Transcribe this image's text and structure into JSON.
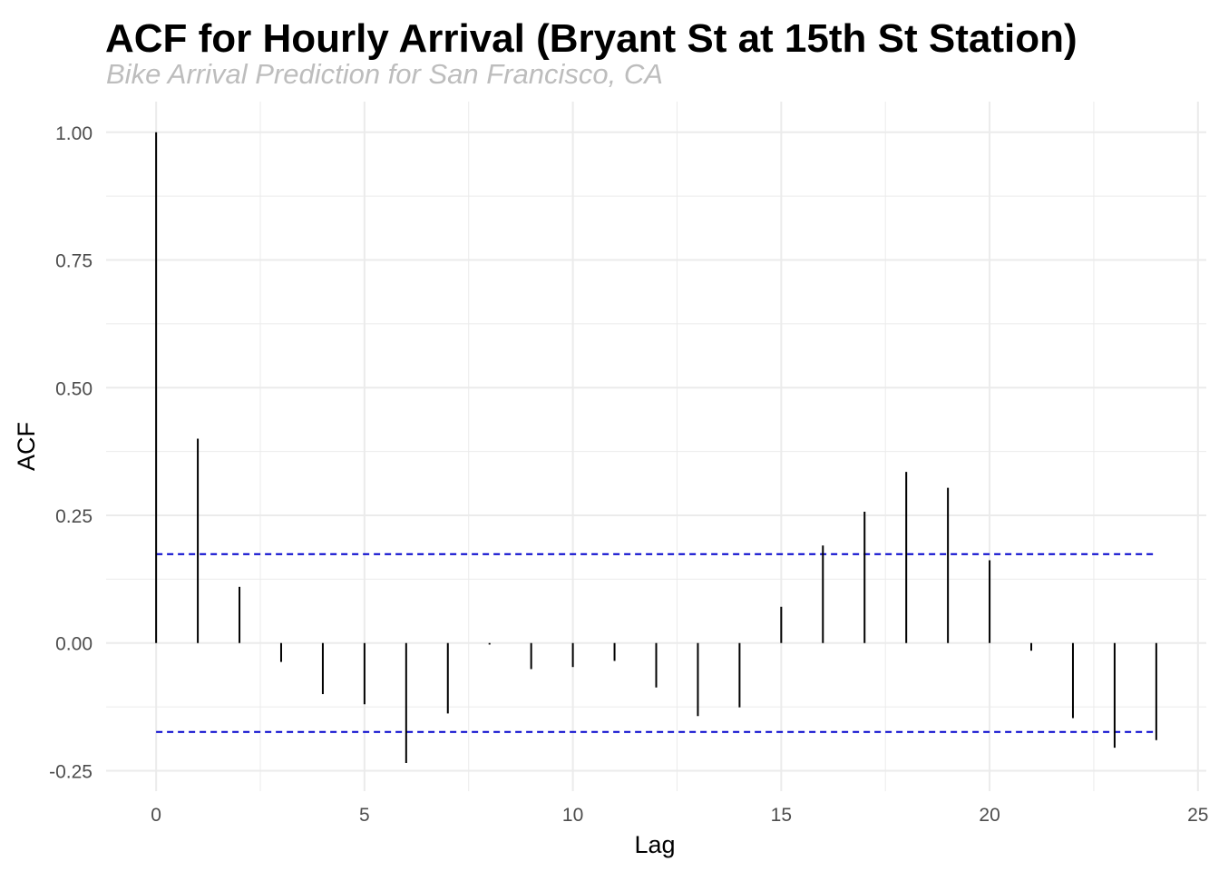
{
  "chart_data": {
    "type": "bar",
    "title": "ACF for Hourly Arrival (Bryant St at 15th St Station)",
    "subtitle": "Bike Arrival Prediction for San Francisco, CA",
    "xlabel": "Lag",
    "ylabel": "ACF",
    "xlim": [
      -1.2,
      25.2
    ],
    "ylim": [
      -0.29,
      1.06
    ],
    "x_ticks": [
      0,
      5,
      10,
      15,
      20,
      25
    ],
    "x_tick_labels": [
      "0",
      "5",
      "10",
      "15",
      "20",
      "25"
    ],
    "y_ticks": [
      -0.25,
      0,
      0.25,
      0.5,
      0.75,
      1.0
    ],
    "y_tick_labels": [
      "-0.25",
      "0.00",
      "0.25",
      "0.50",
      "0.75",
      "1.00"
    ],
    "lags": [
      0,
      1,
      2,
      3,
      4,
      5,
      6,
      7,
      8,
      9,
      10,
      11,
      12,
      13,
      14,
      15,
      16,
      17,
      18,
      19,
      20,
      21,
      22,
      23,
      24
    ],
    "values": [
      1.0,
      0.4,
      0.11,
      -0.037,
      -0.1,
      -0.12,
      -0.235,
      -0.138,
      -0.003,
      -0.051,
      -0.047,
      -0.035,
      -0.087,
      -0.143,
      -0.126,
      0.071,
      0.191,
      0.257,
      0.335,
      0.304,
      0.162,
      -0.015,
      -0.147,
      -0.205,
      -0.19
    ],
    "confidence_bound": 0.174,
    "grid": true,
    "colors": {
      "bars": "#000000",
      "confidence": "#0000cc",
      "grid": "#ebebeb"
    }
  }
}
